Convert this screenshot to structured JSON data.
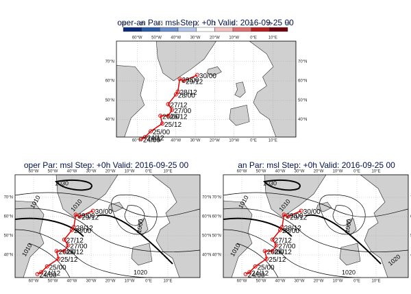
{
  "top_panel": {
    "title": "oper-an Par: msl Step: +0h Valid: 2016-09-25 00",
    "colorbar": {
      "labels": [
        -20,
        -15,
        -10,
        -5,
        -2,
        2,
        5,
        10,
        15,
        20
      ],
      "colors": [
        "#0a2a7a",
        "#2a5aa8",
        "#6a8cc8",
        "#b4c6e6",
        "#ffffff",
        "#f2c0c0",
        "#dc7070",
        "#b42020",
        "#700010"
      ]
    }
  },
  "panels": [
    {
      "title": "oper Par: msl Step: +0h Valid: 2016-09-25 00",
      "contour_labels": [
        "1030",
        "1010",
        "1010",
        "1000",
        "1010",
        "1020"
      ]
    },
    {
      "title": "an Par: msl Step: +0h Valid: 2016-09-25 00",
      "contour_labels": [
        "1030",
        "1010",
        "1010",
        "1000",
        "1010",
        "1020",
        "1020"
      ]
    }
  ],
  "map": {
    "lon_ticks": [
      {
        "value": -60,
        "label": "60°W"
      },
      {
        "value": -50,
        "label": "50°W"
      },
      {
        "value": -40,
        "label": "40°W"
      },
      {
        "value": -30,
        "label": "30°W"
      },
      {
        "value": -20,
        "label": "20°W"
      },
      {
        "value": -10,
        "label": "10°W"
      },
      {
        "value": 0,
        "label": "0°E"
      },
      {
        "value": 10,
        "label": "10°E"
      }
    ],
    "lat_ticks": [
      {
        "value": 70,
        "label": "70°N"
      },
      {
        "value": 60,
        "label": "60°N"
      },
      {
        "value": 50,
        "label": "50°N"
      },
      {
        "value": 40,
        "label": "40°N"
      }
    ],
    "track_color": "#e00000",
    "track": [
      {
        "label": "24/00",
        "lon": -58,
        "lat": 30
      },
      {
        "label": "24/12",
        "lon": -56,
        "lat": 31
      },
      {
        "label": "25/00",
        "lon": -53,
        "lat": 34
      },
      {
        "label": "25/12",
        "lon": -47,
        "lat": 38
      },
      {
        "label": "26/00",
        "lon": -48,
        "lat": 42
      },
      {
        "label": "26/12",
        "lon": -44,
        "lat": 42
      },
      {
        "label": "27/00",
        "lon": -42,
        "lat": 45
      },
      {
        "label": "27/12",
        "lon": -44,
        "lat": 48
      },
      {
        "label": "28/00",
        "lon": -40,
        "lat": 53
      },
      {
        "label": "28/12",
        "lon": -39,
        "lat": 54.5
      },
      {
        "label": "29/00",
        "lon": -38,
        "lat": 61
      },
      {
        "label": "29/12",
        "lon": -36,
        "lat": 60
      },
      {
        "label": "30/00",
        "lon": -29,
        "lat": 63
      }
    ]
  }
}
